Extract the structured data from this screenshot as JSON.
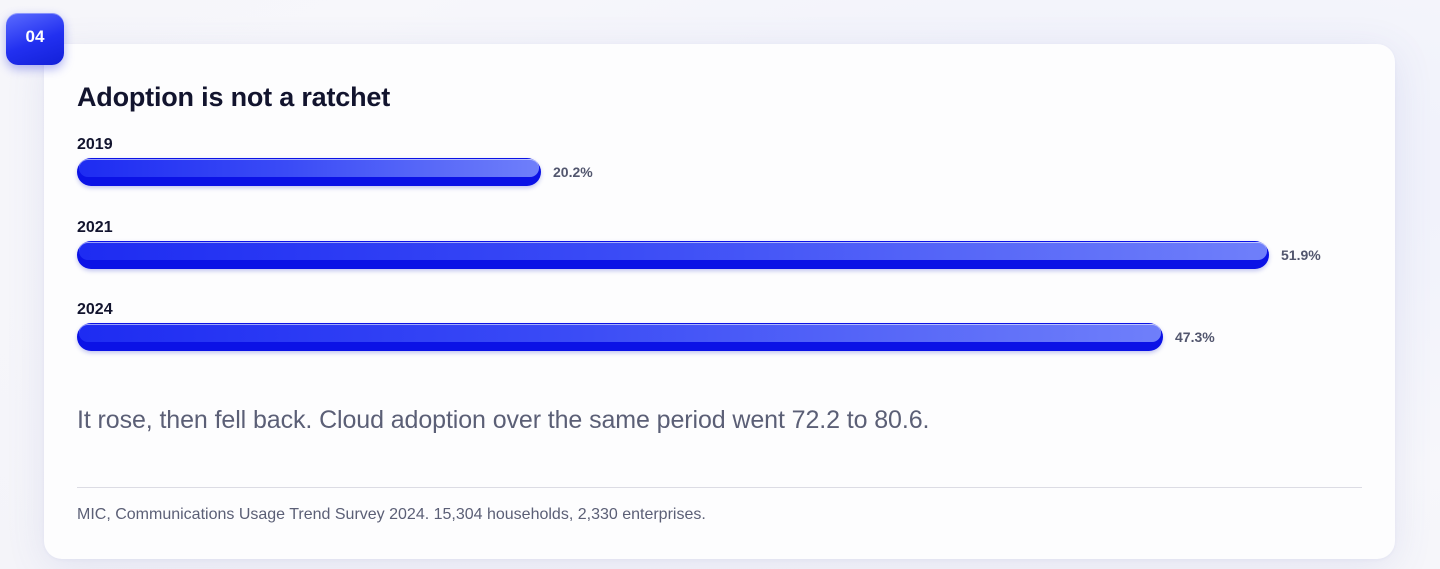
{
  "badge": {
    "label": "04"
  },
  "chart_data": {
    "type": "bar",
    "orientation": "horizontal",
    "title": "Adoption is not a ratchet",
    "categories": [
      "2019",
      "2021",
      "2024"
    ],
    "values": [
      20.2,
      51.9,
      47.3
    ],
    "value_labels": [
      "20.2%",
      "51.9%",
      "47.3%"
    ],
    "xlim": [
      0,
      54
    ],
    "grid": false,
    "legend": "none",
    "colors": {
      "bar": "#0b12e6",
      "bar_highlight": "#6f7ffa"
    }
  },
  "caption": "It rose, then fell back. Cloud adoption over the same period went 72.2 to 80.6.",
  "source": "MIC, Communications Usage Trend Survey 2024. 15,304 households, 2,330 enterprises."
}
